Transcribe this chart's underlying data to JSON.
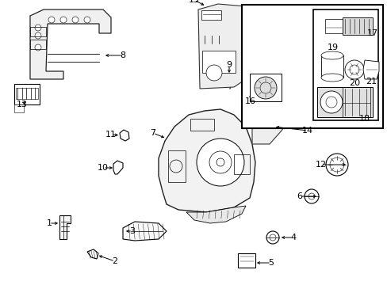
{
  "bg_color": "#ffffff",
  "fig_width": 4.89,
  "fig_height": 3.6,
  "dpi": 100,
  "label_fontsize": 8.0
}
